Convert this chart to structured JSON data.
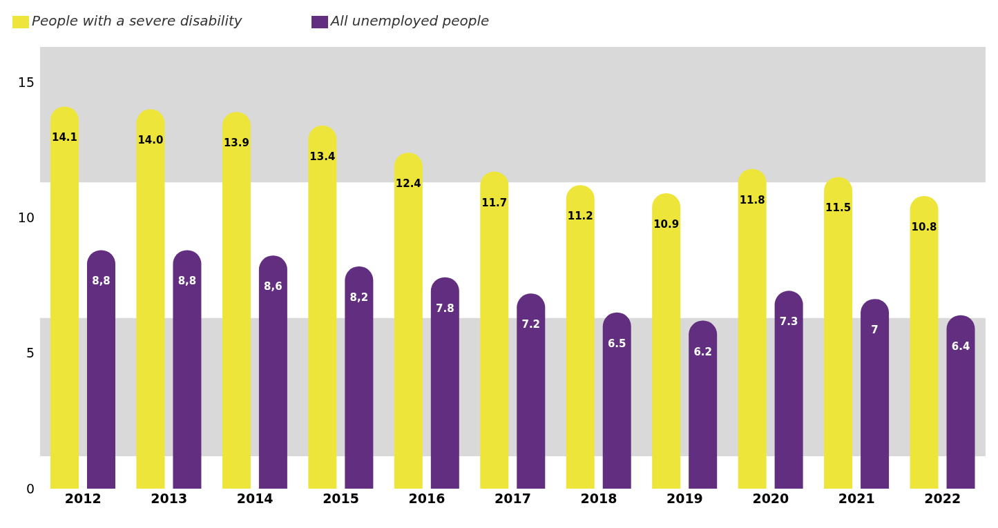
{
  "chart_data": {
    "type": "bar",
    "categories": [
      "2012",
      "2013",
      "2014",
      "2015",
      "2016",
      "2017",
      "2018",
      "2019",
      "2020",
      "2021",
      "2022"
    ],
    "series": [
      {
        "name": "People with a severe disability",
        "color": "#ede53a",
        "values": [
          14.1,
          14.0,
          13.9,
          13.4,
          12.4,
          11.7,
          11.2,
          10.9,
          11.8,
          11.5,
          10.8
        ],
        "value_labels": [
          "14.1",
          "14.0",
          "13.9",
          "13.4",
          "12.4",
          "11.7",
          "11.2",
          "10.9",
          "11.8",
          "11.5",
          "10.8"
        ]
      },
      {
        "name": "All unemployed people",
        "color": "#622f80",
        "values": [
          8.8,
          8.8,
          8.6,
          8.2,
          7.8,
          7.2,
          6.5,
          6.2,
          7.3,
          7,
          6.4
        ],
        "value_labels": [
          "8,8",
          "8,8",
          "8,6",
          "8,2",
          "7.8",
          "7.2",
          "6.5",
          "6.2",
          "7.3",
          "7",
          "6.4"
        ]
      }
    ],
    "ylim": [
      0,
      16.3
    ],
    "yticks": [
      0,
      5,
      10,
      15
    ],
    "grid": false,
    "legend": "top left",
    "bands": [
      {
        "axis": "y",
        "from": 1.2,
        "to": 6.3,
        "color": "#d9d9d9"
      },
      {
        "axis": "y",
        "from": 11.3,
        "to": 16.3,
        "color": "#d9d9d9"
      }
    ]
  }
}
